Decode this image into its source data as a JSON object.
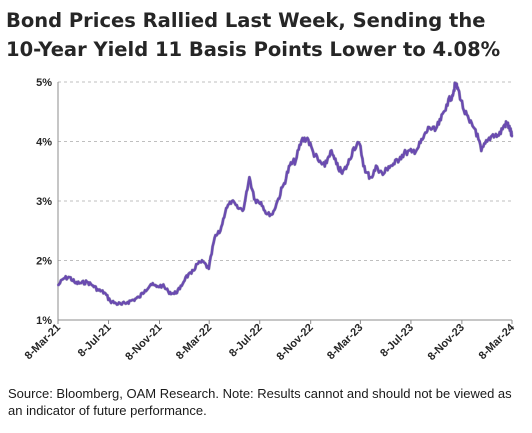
{
  "title": "Bond Prices Rallied Last Week, Sending the 10-Year Yield 11 Basis Points Lower to 4.08%",
  "source": "Source: Bloomberg, OAM Research. Note: Results cannot and should not be viewed as an indicator of future performance.",
  "chart_data": {
    "type": "line",
    "title": "Bond Prices Rallied Last Week, Sending the 10-Year Yield 11 Basis Points Lower to 4.08%",
    "xlabel": "",
    "ylabel": "",
    "x_range": [
      "2021-03-08",
      "2024-03-08"
    ],
    "ylim": [
      1,
      5
    ],
    "y_ticks": [
      1,
      2,
      3,
      4,
      5
    ],
    "y_tick_labels": [
      "1%",
      "2%",
      "3%",
      "4%",
      "5%"
    ],
    "x_ticks": [
      "2021-03-08",
      "2021-07-08",
      "2021-11-08",
      "2022-03-08",
      "2022-07-08",
      "2022-11-08",
      "2023-03-08",
      "2023-07-08",
      "2023-11-08",
      "2024-03-08"
    ],
    "x_tick_labels": [
      "8-Mar-21",
      "8-Jul-21",
      "8-Nov-21",
      "8-Mar-22",
      "8-Jul-22",
      "8-Nov-22",
      "8-Mar-23",
      "8-Jul-23",
      "8-Nov-23",
      "8-Mar-24"
    ],
    "grid": "horizontal",
    "line_color": "#6a4bb0",
    "series": [
      {
        "x": [
          "2021-03-08",
          "2021-03-22",
          "2021-04-05",
          "2021-04-19",
          "2021-05-03",
          "2021-05-17",
          "2021-05-31",
          "2021-06-14",
          "2021-06-28",
          "2021-07-12",
          "2021-07-26",
          "2021-08-09",
          "2021-08-23",
          "2021-09-06",
          "2021-09-20",
          "2021-10-04",
          "2021-10-18",
          "2021-11-01",
          "2021-11-15",
          "2021-11-29",
          "2021-12-13",
          "2021-12-27",
          "2022-01-10",
          "2022-01-24",
          "2022-02-07",
          "2022-02-21",
          "2022-03-07",
          "2022-03-21",
          "2022-04-04",
          "2022-04-18",
          "2022-05-02",
          "2022-05-16",
          "2022-05-30",
          "2022-06-13",
          "2022-06-27",
          "2022-07-11",
          "2022-07-25",
          "2022-08-08",
          "2022-08-22",
          "2022-09-05",
          "2022-09-19",
          "2022-10-03",
          "2022-10-17",
          "2022-10-31",
          "2022-11-14",
          "2022-11-28",
          "2022-12-12",
          "2022-12-26",
          "2023-01-09",
          "2023-01-23",
          "2023-02-06",
          "2023-02-20",
          "2023-03-06",
          "2023-03-20",
          "2023-04-03",
          "2023-04-17",
          "2023-05-01",
          "2023-05-15",
          "2023-05-29",
          "2023-06-12",
          "2023-06-26",
          "2023-07-10",
          "2023-07-24",
          "2023-08-07",
          "2023-08-21",
          "2023-09-04",
          "2023-09-18",
          "2023-10-02",
          "2023-10-16",
          "2023-10-23",
          "2023-10-30",
          "2023-11-13",
          "2023-11-27",
          "2023-12-11",
          "2023-12-25",
          "2024-01-08",
          "2024-01-22",
          "2024-02-05",
          "2024-02-19",
          "2024-02-26",
          "2024-03-04",
          "2024-03-08"
        ],
        "values": [
          1.58,
          1.7,
          1.72,
          1.62,
          1.62,
          1.64,
          1.58,
          1.5,
          1.46,
          1.32,
          1.28,
          1.26,
          1.3,
          1.34,
          1.38,
          1.5,
          1.6,
          1.56,
          1.58,
          1.48,
          1.44,
          1.52,
          1.72,
          1.78,
          1.94,
          1.98,
          1.86,
          2.38,
          2.5,
          2.88,
          3.0,
          2.88,
          2.86,
          3.4,
          3.02,
          2.98,
          2.78,
          2.78,
          3.04,
          3.3,
          3.6,
          3.68,
          4.02,
          4.06,
          3.82,
          3.66,
          3.58,
          3.84,
          3.62,
          3.46,
          3.62,
          3.9,
          3.96,
          3.48,
          3.4,
          3.58,
          3.44,
          3.58,
          3.62,
          3.74,
          3.82,
          3.82,
          3.88,
          4.06,
          4.24,
          4.18,
          4.36,
          4.62,
          4.78,
          4.96,
          4.88,
          4.52,
          4.32,
          4.2,
          3.84,
          4.0,
          4.12,
          4.1,
          4.28,
          4.3,
          4.19,
          4.08
        ]
      }
    ]
  }
}
